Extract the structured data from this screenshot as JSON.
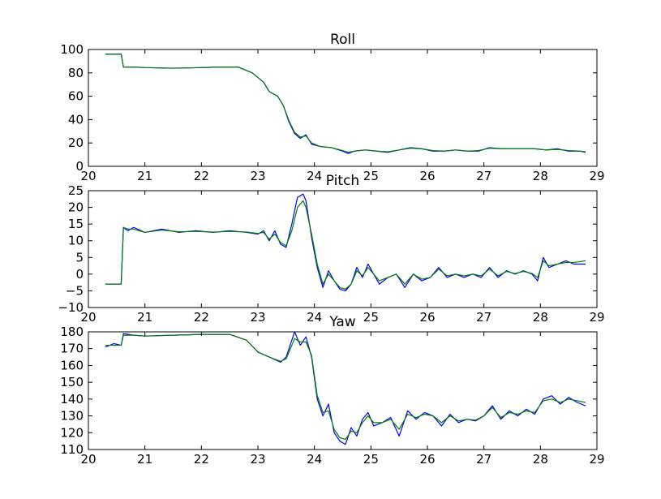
{
  "chart_data": [
    {
      "type": "line",
      "title": "Roll",
      "xlabel": "",
      "ylabel": "",
      "xlim": [
        20,
        29
      ],
      "ylim": [
        0,
        100
      ],
      "xticks": [
        20,
        21,
        22,
        23,
        24,
        25,
        26,
        27,
        28,
        29
      ],
      "yticks": [
        0,
        20,
        40,
        60,
        80,
        100
      ],
      "series": [
        {
          "color": "#0000ff",
          "x": [
            20.3,
            20.58,
            20.62,
            20.8,
            21.0,
            21.5,
            22.0,
            22.3,
            22.65,
            22.9,
            23.1,
            23.2,
            23.35,
            23.45,
            23.55,
            23.65,
            23.75,
            23.85,
            23.95,
            24.1,
            24.3,
            24.5,
            24.6,
            24.7,
            24.9,
            25.1,
            25.3,
            25.5,
            25.7,
            25.9,
            26.1,
            26.3,
            26.5,
            26.7,
            26.9,
            27.1,
            27.3,
            27.5,
            27.7,
            27.9,
            28.1,
            28.3,
            28.5,
            28.7,
            28.8
          ],
          "y": [
            96,
            96,
            85,
            85,
            84.5,
            84,
            84.5,
            85,
            85,
            80,
            72,
            64,
            60,
            52,
            38,
            28,
            24,
            27,
            19,
            17,
            16,
            13,
            11,
            13,
            14,
            13,
            12,
            14,
            16,
            15,
            13,
            13,
            14,
            13,
            13,
            16,
            15,
            15,
            15,
            15,
            14,
            15,
            13,
            13,
            12
          ]
        },
        {
          "color": "#007f00",
          "x": [
            20.3,
            20.58,
            20.62,
            20.8,
            21.0,
            21.5,
            22.0,
            22.3,
            22.65,
            22.9,
            23.1,
            23.2,
            23.35,
            23.45,
            23.55,
            23.65,
            23.75,
            23.85,
            23.95,
            24.1,
            24.3,
            24.5,
            24.6,
            24.7,
            24.9,
            25.1,
            25.3,
            25.5,
            25.7,
            25.9,
            26.1,
            26.3,
            26.5,
            26.7,
            26.9,
            27.1,
            27.3,
            27.5,
            27.7,
            27.9,
            28.1,
            28.3,
            28.5,
            28.7,
            28.8
          ],
          "y": [
            96,
            96,
            85,
            85,
            84.5,
            84,
            84.5,
            85,
            85,
            80,
            72,
            64,
            60,
            52,
            39,
            29,
            25,
            26,
            20,
            17,
            16,
            13.5,
            12,
            13,
            14,
            13,
            12.5,
            14,
            15.5,
            15,
            13.5,
            13,
            14,
            13,
            13.5,
            15.5,
            15,
            15,
            15,
            15,
            14,
            14.5,
            13.5,
            13,
            12.5
          ]
        }
      ]
    },
    {
      "type": "line",
      "title": "Pitch",
      "xlabel": "",
      "ylabel": "",
      "xlim": [
        20,
        29
      ],
      "ylim": [
        -10,
        25
      ],
      "xticks": [
        20,
        21,
        22,
        23,
        24,
        25,
        26,
        27,
        28,
        29
      ],
      "yticks": [
        -10,
        -5,
        0,
        5,
        10,
        15,
        20,
        25
      ],
      "series": [
        {
          "color": "#0000ff",
          "x": [
            20.3,
            20.58,
            20.62,
            20.7,
            20.8,
            21.0,
            21.3,
            21.6,
            21.9,
            22.2,
            22.5,
            22.8,
            23.0,
            23.1,
            23.2,
            23.3,
            23.4,
            23.5,
            23.6,
            23.7,
            23.8,
            23.85,
            23.95,
            24.05,
            24.15,
            24.25,
            24.35,
            24.45,
            24.55,
            24.65,
            24.75,
            24.85,
            24.95,
            25.05,
            25.15,
            25.3,
            25.45,
            25.6,
            25.75,
            25.9,
            26.05,
            26.2,
            26.35,
            26.5,
            26.65,
            26.8,
            26.95,
            27.1,
            27.25,
            27.4,
            27.55,
            27.7,
            27.85,
            27.95,
            28.05,
            28.15,
            28.3,
            28.45,
            28.6,
            28.8
          ],
          "y": [
            -3,
            -3,
            14,
            13,
            14,
            12.5,
            13.5,
            12.5,
            13,
            12.5,
            13,
            12.5,
            12,
            13,
            10,
            13,
            9,
            8,
            15,
            23,
            24,
            22,
            11,
            2,
            -4,
            1,
            -2,
            -4.5,
            -5,
            -3,
            2,
            -1,
            3,
            0,
            -3,
            -1,
            0,
            -4,
            0,
            -2,
            -1,
            2,
            -1,
            0,
            -1,
            0,
            -1,
            2,
            -1,
            1,
            0,
            1,
            0,
            -2,
            5,
            2,
            3,
            4,
            3,
            3
          ]
        },
        {
          "color": "#007f00",
          "x": [
            20.3,
            20.58,
            20.62,
            20.7,
            20.8,
            21.0,
            21.3,
            21.6,
            21.9,
            22.2,
            22.5,
            22.8,
            23.0,
            23.1,
            23.2,
            23.3,
            23.4,
            23.5,
            23.6,
            23.7,
            23.8,
            23.85,
            23.95,
            24.05,
            24.15,
            24.25,
            24.35,
            24.45,
            24.55,
            24.65,
            24.75,
            24.85,
            24.95,
            25.05,
            25.15,
            25.3,
            25.45,
            25.6,
            25.75,
            25.9,
            26.05,
            26.2,
            26.35,
            26.5,
            26.65,
            26.8,
            26.95,
            27.1,
            27.25,
            27.4,
            27.55,
            27.7,
            27.85,
            27.95,
            28.05,
            28.15,
            28.3,
            28.45,
            28.6,
            28.8
          ],
          "y": [
            -3,
            -3,
            14,
            13.5,
            13.5,
            12.5,
            13.2,
            12.7,
            12.8,
            12.6,
            12.8,
            12.6,
            12.2,
            12.5,
            10.5,
            12,
            9.5,
            8.5,
            13,
            20,
            22,
            20,
            12,
            3,
            -3,
            0,
            -2,
            -4,
            -4.5,
            -3,
            1,
            -0.5,
            2,
            0,
            -2,
            -1,
            0,
            -3,
            0,
            -1.5,
            -1,
            1.5,
            -0.5,
            0,
            -0.5,
            0,
            -0.5,
            1.5,
            -0.5,
            0.8,
            0.2,
            0.8,
            0.2,
            -1,
            4,
            2.5,
            3,
            3.5,
            3.5,
            4
          ]
        }
      ]
    },
    {
      "type": "line",
      "title": "Yaw",
      "xlabel": "",
      "ylabel": "",
      "xlim": [
        20,
        29
      ],
      "ylim": [
        110,
        180
      ],
      "xticks": [
        20,
        21,
        22,
        23,
        24,
        25,
        26,
        27,
        28,
        29
      ],
      "yticks": [
        110,
        120,
        130,
        140,
        150,
        160,
        170,
        180
      ],
      "series": [
        {
          "color": "#0000ff",
          "x": [
            20.3,
            20.45,
            20.58,
            20.62,
            20.8,
            21.0,
            21.5,
            22.0,
            22.5,
            22.8,
            23.0,
            23.2,
            23.4,
            23.5,
            23.6,
            23.65,
            23.75,
            23.85,
            23.95,
            24.05,
            24.15,
            24.25,
            24.35,
            24.45,
            24.55,
            24.65,
            24.75,
            24.85,
            24.95,
            25.05,
            25.2,
            25.35,
            25.5,
            25.65,
            25.8,
            25.95,
            26.1,
            26.25,
            26.4,
            26.55,
            26.7,
            26.85,
            27.0,
            27.15,
            27.3,
            27.45,
            27.6,
            27.75,
            27.9,
            28.05,
            28.2,
            28.35,
            28.5,
            28.65,
            28.8
          ],
          "y": [
            171,
            173,
            172,
            179,
            178,
            177.5,
            178,
            178.5,
            178.5,
            175,
            168,
            165,
            162,
            165,
            175,
            180,
            172,
            177,
            165,
            140,
            130,
            137,
            120,
            115,
            113,
            123,
            118,
            128,
            132,
            124,
            126,
            129,
            118,
            133,
            128,
            132,
            130,
            124,
            131,
            126,
            128,
            127,
            130,
            136,
            128,
            133,
            130,
            134,
            131,
            140,
            142,
            137,
            141,
            138,
            136
          ]
        },
        {
          "color": "#007f00",
          "x": [
            20.3,
            20.45,
            20.58,
            20.62,
            20.8,
            21.0,
            21.5,
            22.0,
            22.5,
            22.8,
            23.0,
            23.2,
            23.4,
            23.5,
            23.6,
            23.65,
            23.75,
            23.85,
            23.95,
            24.05,
            24.15,
            24.25,
            24.35,
            24.45,
            24.55,
            24.65,
            24.75,
            24.85,
            24.95,
            25.05,
            25.2,
            25.35,
            25.5,
            25.65,
            25.8,
            25.95,
            26.1,
            26.25,
            26.4,
            26.55,
            26.7,
            26.85,
            27.0,
            27.15,
            27.3,
            27.45,
            27.6,
            27.75,
            27.9,
            28.05,
            28.2,
            28.35,
            28.5,
            28.65,
            28.8
          ],
          "y": [
            172,
            172,
            172,
            178,
            178,
            177.5,
            178,
            178.5,
            178.5,
            175,
            168,
            165,
            162.5,
            164,
            172,
            176,
            174,
            174,
            166,
            142,
            132,
            133,
            122,
            117,
            116,
            121,
            120,
            126,
            130,
            126,
            126,
            128,
            122,
            131,
            129,
            131,
            130,
            126,
            130,
            127,
            128,
            127.5,
            130,
            135,
            129,
            132,
            131,
            133,
            132,
            139,
            140,
            138,
            140,
            139,
            138
          ]
        }
      ]
    }
  ]
}
